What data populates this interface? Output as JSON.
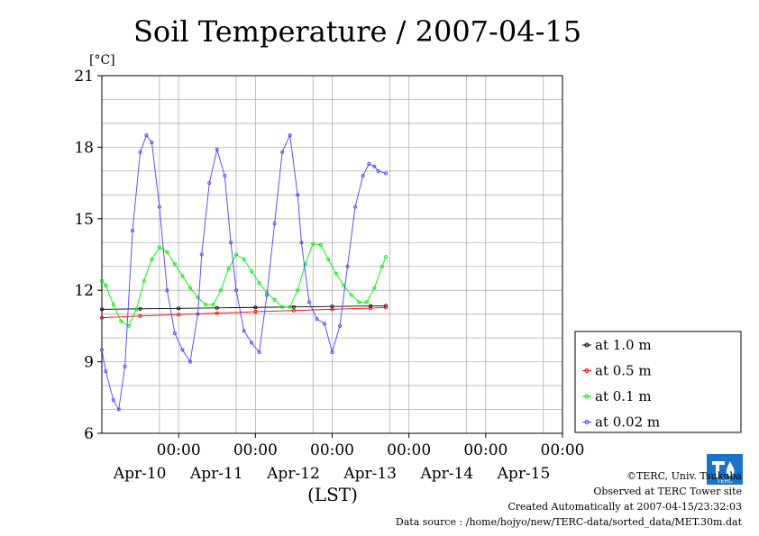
{
  "chart_data": {
    "type": "line",
    "title": "Soil Temperature / 2007-04-15",
    "ylabel": "[°C]",
    "xlabel": "(LST)",
    "ylim": [
      6,
      21
    ],
    "yticks": [
      6,
      9,
      12,
      15,
      18,
      21
    ],
    "xlim": [
      0,
      6
    ],
    "xticks": [
      {
        "x": 1,
        "time": "00:00",
        "date": "Apr-10"
      },
      {
        "x": 2,
        "time": "00:00",
        "date": "Apr-11"
      },
      {
        "x": 3,
        "time": "00:00",
        "date": "Apr-12"
      },
      {
        "x": 4,
        "time": "00:00",
        "date": "Apr-13"
      },
      {
        "x": 5,
        "time": "00:00",
        "date": "Apr-14"
      },
      {
        "x": 6,
        "time": "00:00",
        "date": "Apr-15"
      }
    ],
    "grid": true,
    "legend_position": "right",
    "series": [
      {
        "name": "at 1.0 m",
        "color": "#000000",
        "x": [
          0.0,
          0.5,
          1.0,
          1.5,
          2.0,
          2.5,
          3.0,
          3.5,
          3.7
        ],
        "y": [
          11.2,
          11.22,
          11.24,
          11.26,
          11.28,
          11.3,
          11.32,
          11.34,
          11.35
        ]
      },
      {
        "name": "at 0.5 m",
        "color": "#ff0000",
        "x": [
          0.0,
          0.5,
          1.0,
          1.5,
          2.0,
          2.5,
          3.0,
          3.5,
          3.7
        ],
        "y": [
          10.85,
          10.92,
          10.98,
          11.04,
          11.1,
          11.15,
          11.2,
          11.25,
          11.28
        ]
      },
      {
        "name": "at 0.1 m",
        "color": "#00ee00",
        "x": [
          0.0,
          0.05,
          0.15,
          0.25,
          0.35,
          0.45,
          0.55,
          0.65,
          0.75,
          0.85,
          0.95,
          1.05,
          1.15,
          1.25,
          1.35,
          1.45,
          1.55,
          1.65,
          1.75,
          1.85,
          1.95,
          2.05,
          2.15,
          2.25,
          2.35,
          2.45,
          2.55,
          2.65,
          2.75,
          2.85,
          2.95,
          3.05,
          3.15,
          3.25,
          3.35,
          3.45,
          3.55,
          3.65,
          3.7
        ],
        "y": [
          12.4,
          12.2,
          11.4,
          10.7,
          10.5,
          11.2,
          12.4,
          13.3,
          13.8,
          13.6,
          13.1,
          12.6,
          12.1,
          11.7,
          11.4,
          11.4,
          12.0,
          12.9,
          13.5,
          13.3,
          12.8,
          12.3,
          11.9,
          11.6,
          11.3,
          11.3,
          12.0,
          13.1,
          13.95,
          13.9,
          13.3,
          12.7,
          12.2,
          11.8,
          11.5,
          11.5,
          12.1,
          13.0,
          13.4
        ]
      },
      {
        "name": "at 0.02 m",
        "color": "#4444ff",
        "x": [
          0.0,
          0.05,
          0.15,
          0.22,
          0.3,
          0.4,
          0.5,
          0.58,
          0.65,
          0.75,
          0.85,
          0.95,
          1.05,
          1.15,
          1.25,
          1.3,
          1.4,
          1.5,
          1.6,
          1.68,
          1.75,
          1.85,
          1.95,
          2.05,
          2.15,
          2.25,
          2.35,
          2.45,
          2.55,
          2.6,
          2.7,
          2.8,
          2.9,
          3.0,
          3.1,
          3.2,
          3.3,
          3.4,
          3.48,
          3.55,
          3.6,
          3.7
        ],
        "y": [
          9.5,
          8.6,
          7.4,
          7.0,
          8.8,
          14.5,
          17.8,
          18.5,
          18.2,
          15.5,
          12.0,
          10.2,
          9.5,
          9.0,
          11.0,
          13.5,
          16.5,
          17.9,
          16.8,
          14.0,
          12.0,
          10.3,
          9.8,
          9.4,
          11.8,
          14.8,
          17.8,
          18.5,
          16.0,
          14.0,
          11.5,
          10.8,
          10.6,
          9.4,
          10.5,
          13.0,
          15.5,
          16.8,
          17.3,
          17.2,
          17.0,
          16.9
        ]
      }
    ]
  },
  "legend": {
    "items": [
      "at 1.0 m",
      "at 0.5 m",
      "at 0.1 m",
      "at 0.02 m"
    ]
  },
  "credits": {
    "copyright": "©TERC, Univ. Tsukuba",
    "observed": "Observed at TERC Tower site",
    "created": "Created Automatically at 2007-04-15/23:32:03",
    "source": "Data source : /home/hojyo/new/TERC-data/sorted_data/MET.30m.dat",
    "logo_text": "TERC"
  }
}
